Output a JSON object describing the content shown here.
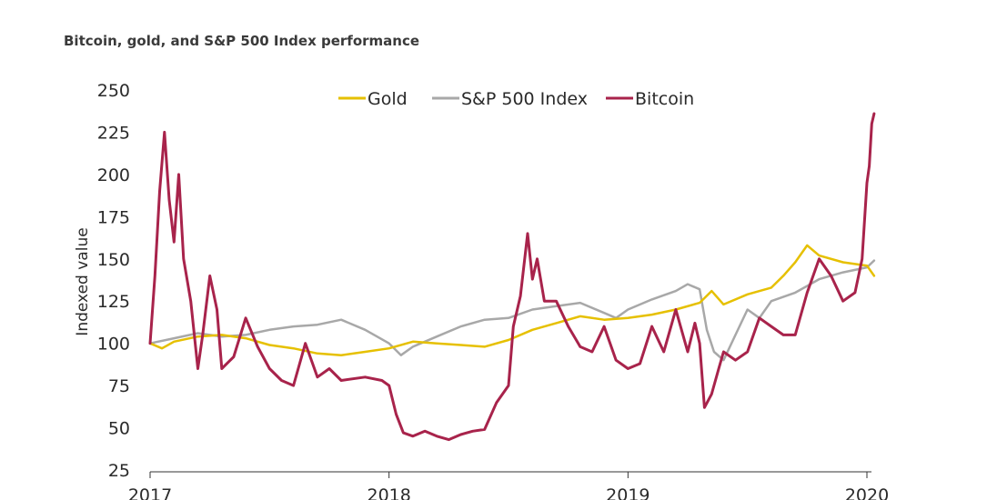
{
  "chart_data": {
    "type": "line",
    "title": "Bitcoin, gold, and S&P 500 Index performance",
    "ylabel": "Indexed value",
    "xlabel": "",
    "ylim": [
      25,
      250
    ],
    "yticks": [
      25,
      50,
      75,
      100,
      125,
      150,
      175,
      200,
      225,
      250
    ],
    "xlim": [
      2017,
      2020.03
    ],
    "xticks": [
      "2017",
      "2018",
      "2019",
      "2020"
    ],
    "legend_position": "top-center",
    "grid": false,
    "series": [
      {
        "name": "Gold",
        "color": "#e6c000",
        "x": [
          2017.0,
          2017.05,
          2017.1,
          2017.2,
          2017.3,
          2017.4,
          2017.5,
          2017.6,
          2017.7,
          2017.8,
          2017.9,
          2018.0,
          2018.1,
          2018.2,
          2018.3,
          2018.4,
          2018.5,
          2018.6,
          2018.7,
          2018.8,
          2018.9,
          2019.0,
          2019.1,
          2019.2,
          2019.3,
          2019.35,
          2019.4,
          2019.5,
          2019.6,
          2019.65,
          2019.7,
          2019.75,
          2019.8,
          2019.9,
          2020.0,
          2020.03
        ],
        "values": [
          100,
          97,
          101,
          104,
          105,
          103,
          99,
          97,
          94,
          93,
          95,
          97,
          101,
          100,
          99,
          98,
          102,
          108,
          112,
          116,
          114,
          115,
          117,
          120,
          124,
          131,
          123,
          129,
          133,
          140,
          148,
          158,
          152,
          148,
          146,
          140
        ]
      },
      {
        "name": "S&P 500 Index",
        "color": "#a8a8a8",
        "x": [
          2017.0,
          2017.1,
          2017.2,
          2017.3,
          2017.4,
          2017.5,
          2017.6,
          2017.7,
          2017.8,
          2017.9,
          2018.0,
          2018.05,
          2018.1,
          2018.2,
          2018.3,
          2018.4,
          2018.5,
          2018.6,
          2018.7,
          2018.8,
          2018.9,
          2018.95,
          2019.0,
          2019.1,
          2019.2,
          2019.25,
          2019.3,
          2019.33,
          2019.36,
          2019.4,
          2019.45,
          2019.5,
          2019.55,
          2019.6,
          2019.7,
          2019.8,
          2019.9,
          2020.0,
          2020.03
        ],
        "values": [
          100,
          103,
          106,
          104,
          105,
          108,
          110,
          111,
          114,
          108,
          100,
          93,
          98,
          104,
          110,
          114,
          115,
          120,
          122,
          124,
          118,
          115,
          120,
          126,
          131,
          135,
          132,
          108,
          95,
          90,
          105,
          120,
          115,
          125,
          130,
          138,
          142,
          145,
          149
        ]
      },
      {
        "name": "Bitcoin",
        "color": "#a8234b",
        "x": [
          2017.0,
          2017.02,
          2017.04,
          2017.06,
          2017.08,
          2017.1,
          2017.12,
          2017.14,
          2017.17,
          2017.2,
          2017.22,
          2017.25,
          2017.28,
          2017.3,
          2017.35,
          2017.4,
          2017.45,
          2017.5,
          2017.55,
          2017.6,
          2017.65,
          2017.7,
          2017.75,
          2017.8,
          2017.9,
          2017.97,
          2018.0,
          2018.03,
          2018.06,
          2018.1,
          2018.15,
          2018.2,
          2018.25,
          2018.3,
          2018.35,
          2018.4,
          2018.45,
          2018.5,
          2018.52,
          2018.55,
          2018.58,
          2018.6,
          2018.62,
          2018.65,
          2018.7,
          2018.75,
          2018.8,
          2018.85,
          2018.9,
          2018.95,
          2019.0,
          2019.05,
          2019.1,
          2019.15,
          2019.2,
          2019.25,
          2019.28,
          2019.3,
          2019.32,
          2019.35,
          2019.38,
          2019.4,
          2019.45,
          2019.5,
          2019.55,
          2019.6,
          2019.65,
          2019.7,
          2019.75,
          2019.8,
          2019.85,
          2019.9,
          2019.95,
          2019.98,
          2020.0,
          2020.01,
          2020.02,
          2020.03
        ],
        "values": [
          100,
          140,
          190,
          225,
          185,
          160,
          200,
          150,
          125,
          85,
          105,
          140,
          120,
          85,
          92,
          115,
          98,
          85,
          78,
          75,
          100,
          80,
          85,
          78,
          80,
          78,
          75,
          58,
          47,
          45,
          48,
          45,
          43,
          46,
          48,
          49,
          65,
          75,
          110,
          128,
          165,
          138,
          150,
          125,
          125,
          110,
          98,
          95,
          110,
          90,
          85,
          88,
          110,
          95,
          120,
          95,
          112,
          100,
          62,
          70,
          85,
          95,
          90,
          95,
          115,
          110,
          105,
          105,
          130,
          150,
          140,
          125,
          130,
          150,
          195,
          205,
          230,
          236
        ]
      }
    ]
  }
}
